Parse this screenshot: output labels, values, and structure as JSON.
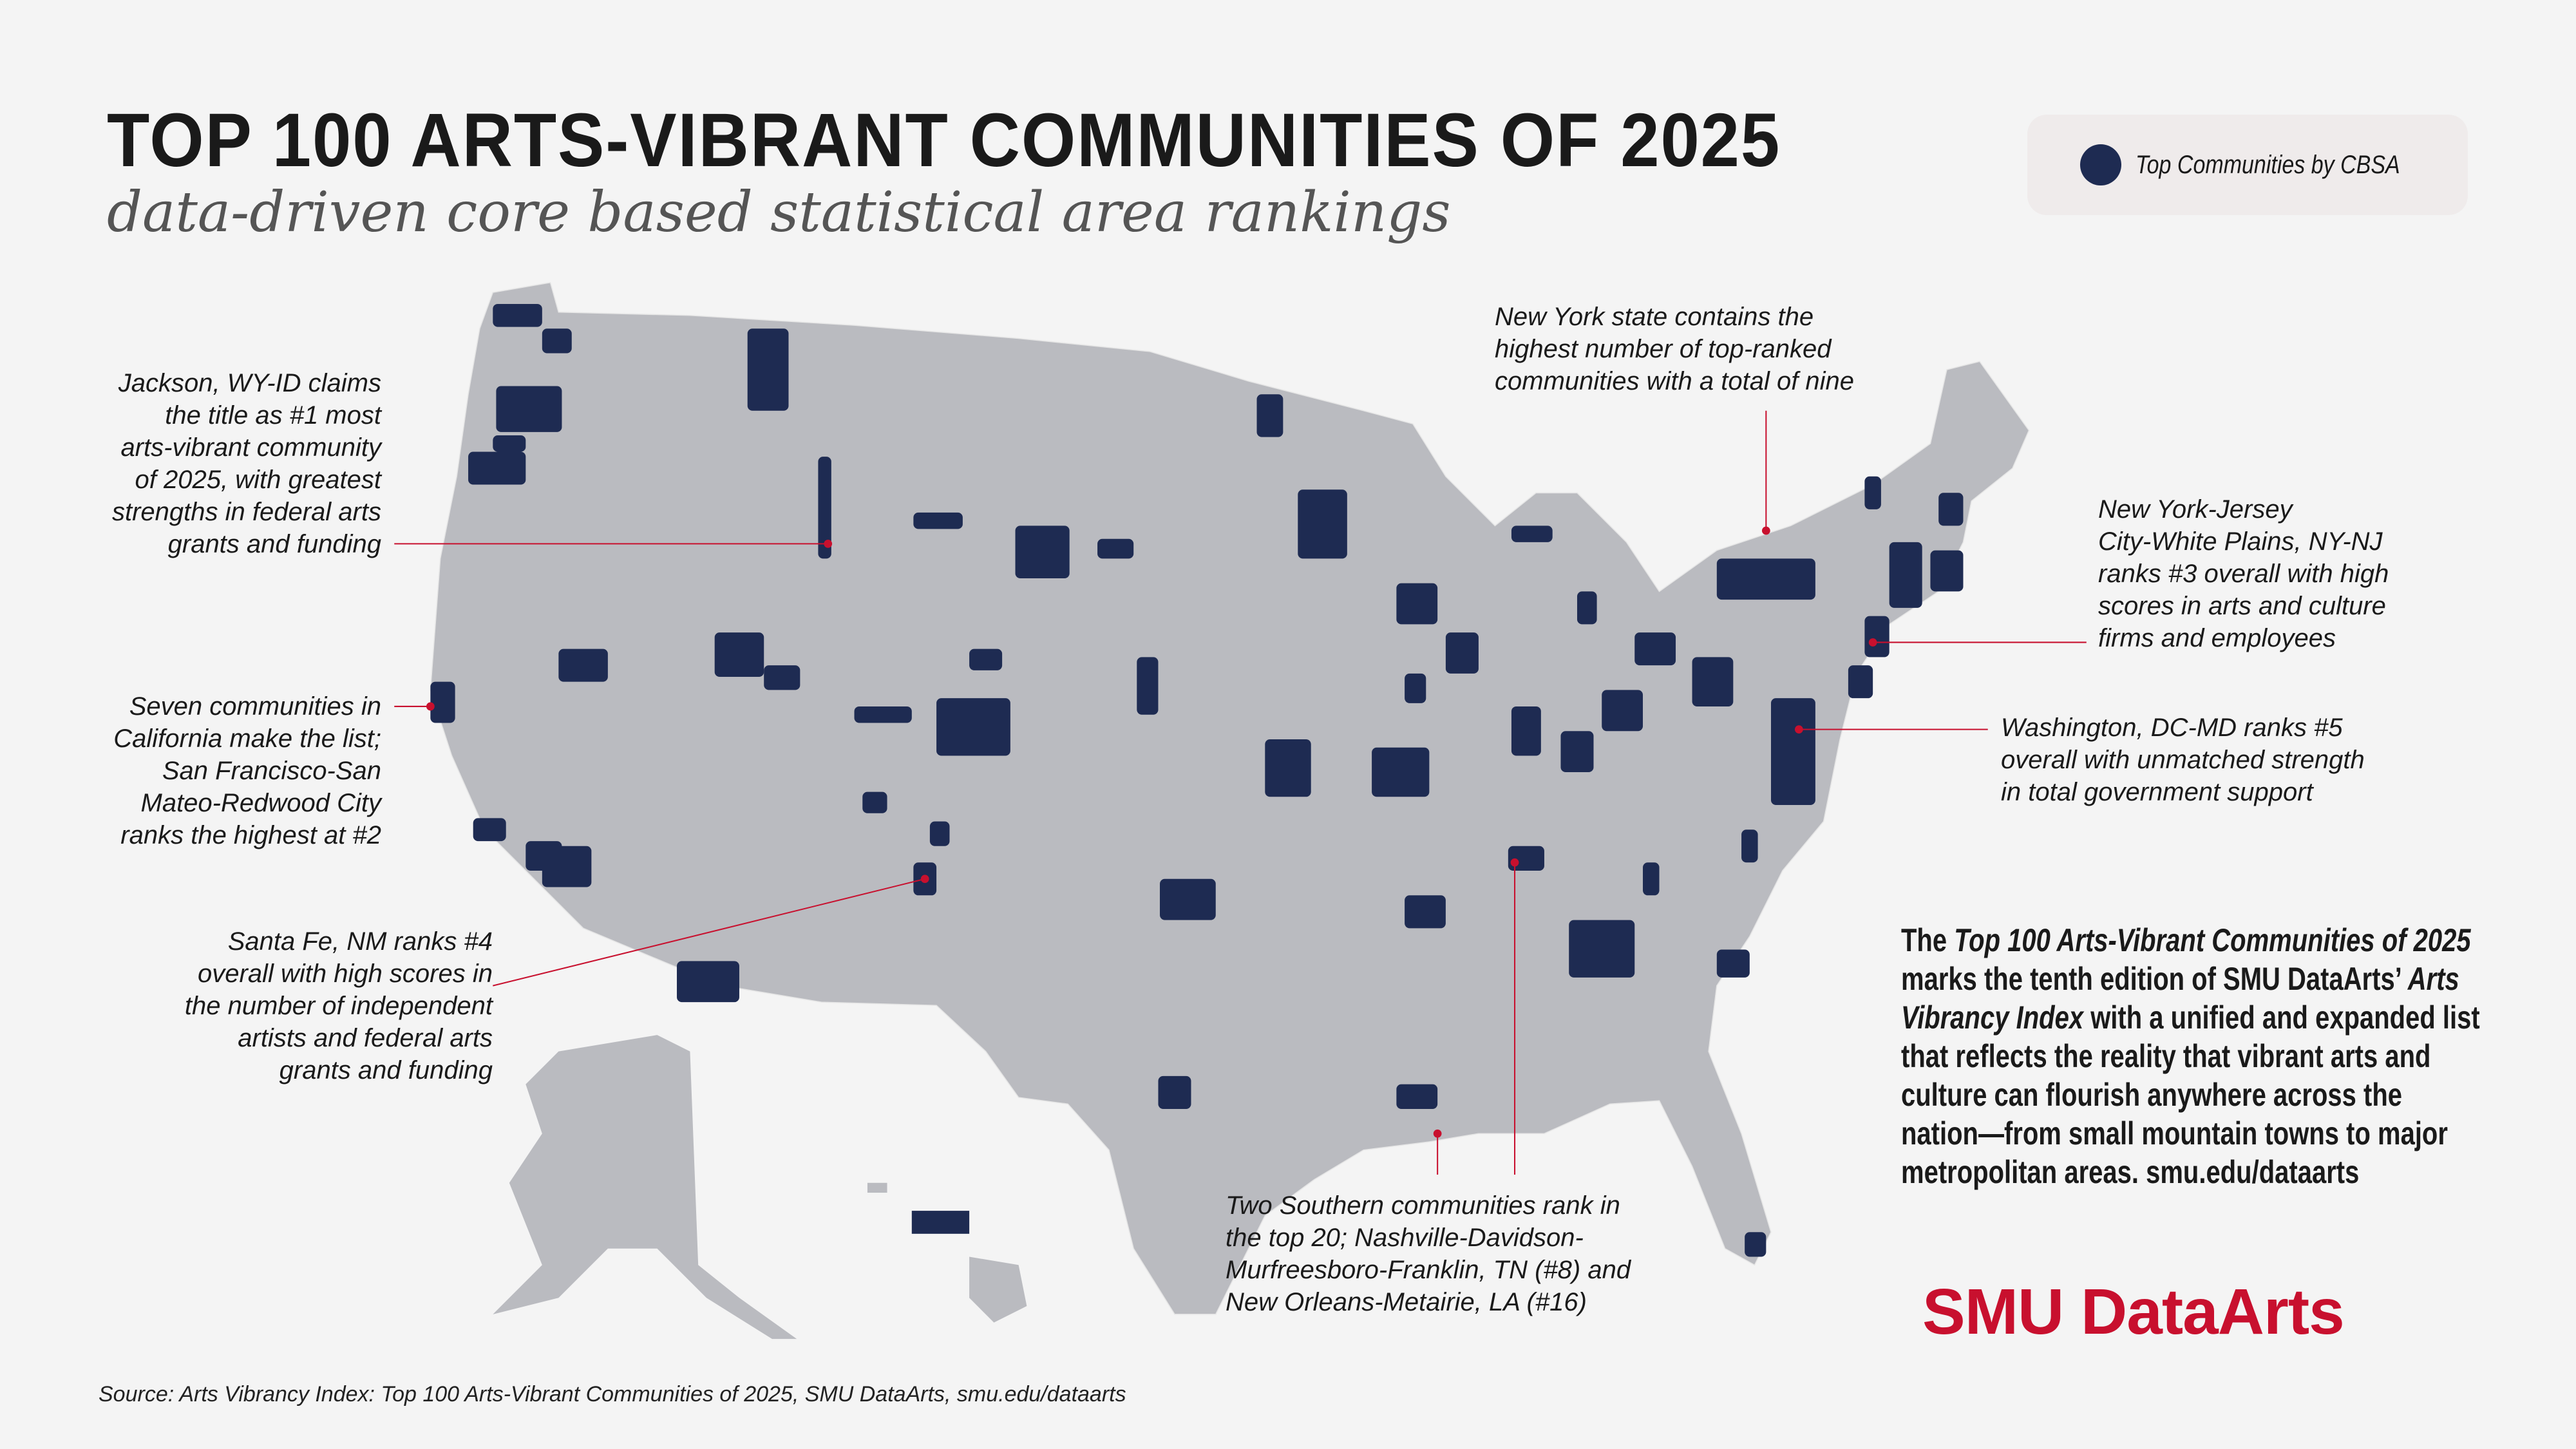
{
  "header": {
    "title": "TOP 100 ARTS-VIBRANT COMMUNITIES OF 2025",
    "subtitle": "data-driven core based statistical area rankings"
  },
  "legend": {
    "label": "Top Communities by CBSA",
    "color": "#1e2b52"
  },
  "colors": {
    "highlight": "#1e2b52",
    "land": "#babbc0",
    "accent": "#c8102e",
    "background": "#f4f4f4"
  },
  "annotations": {
    "jackson": [
      "Jackson, WY-ID claims",
      "the title as #1 most",
      "arts-vibrant community",
      "of 2025, with greatest",
      "strengths in federal arts",
      "grants and funding"
    ],
    "california": [
      "Seven communities in",
      "California make the list;",
      "San Francisco-San",
      "Mateo-Redwood City",
      "ranks the highest at #2"
    ],
    "santa_fe": [
      "Santa Fe, NM ranks #4",
      "overall with high scores in",
      "the number of independent",
      "artists and federal arts",
      "grants and funding"
    ],
    "new_york_state": [
      "New York state contains the",
      "highest number of top-ranked",
      "communities with a total of nine"
    ],
    "new_york_jersey": [
      "New York-Jersey",
      "City-White Plains, NY-NJ",
      "ranks #3 overall with high",
      "scores in arts and culture",
      "firms and employees"
    ],
    "washington": [
      "Washington, DC-MD ranks #5",
      "overall with unmatched strength",
      "in total government support"
    ],
    "southern": [
      "Two Southern communities rank in",
      "the top 20; Nashville-Davidson-",
      "Murfreesboro-Franklin, TN (#8) and",
      "New Orleans-Metairie, LA (#16)"
    ]
  },
  "body": {
    "l1_a": "The ",
    "l1_b": "Top 100 Arts-Vibrant Communities of 2025",
    "l2_a": "marks the tenth edition of SMU DataArts’ ",
    "l2_b": "Arts",
    "l3_a": "Vibrancy Index",
    "l3_b": " with a unified and expanded list",
    "l4": "that reflects the reality that vibrant arts and",
    "l5": "culture can flourish anywhere across the",
    "l6": "nation—from small mountain towns to major",
    "l7": "metropolitan areas. smu.edu/dataarts"
  },
  "logo": "SMU DataArts",
  "source": "Source: Arts Vibrancy Index: Top 100 Arts-Vibrant Communities of 2025, SMU DataArts, smu.edu/dataarts"
}
